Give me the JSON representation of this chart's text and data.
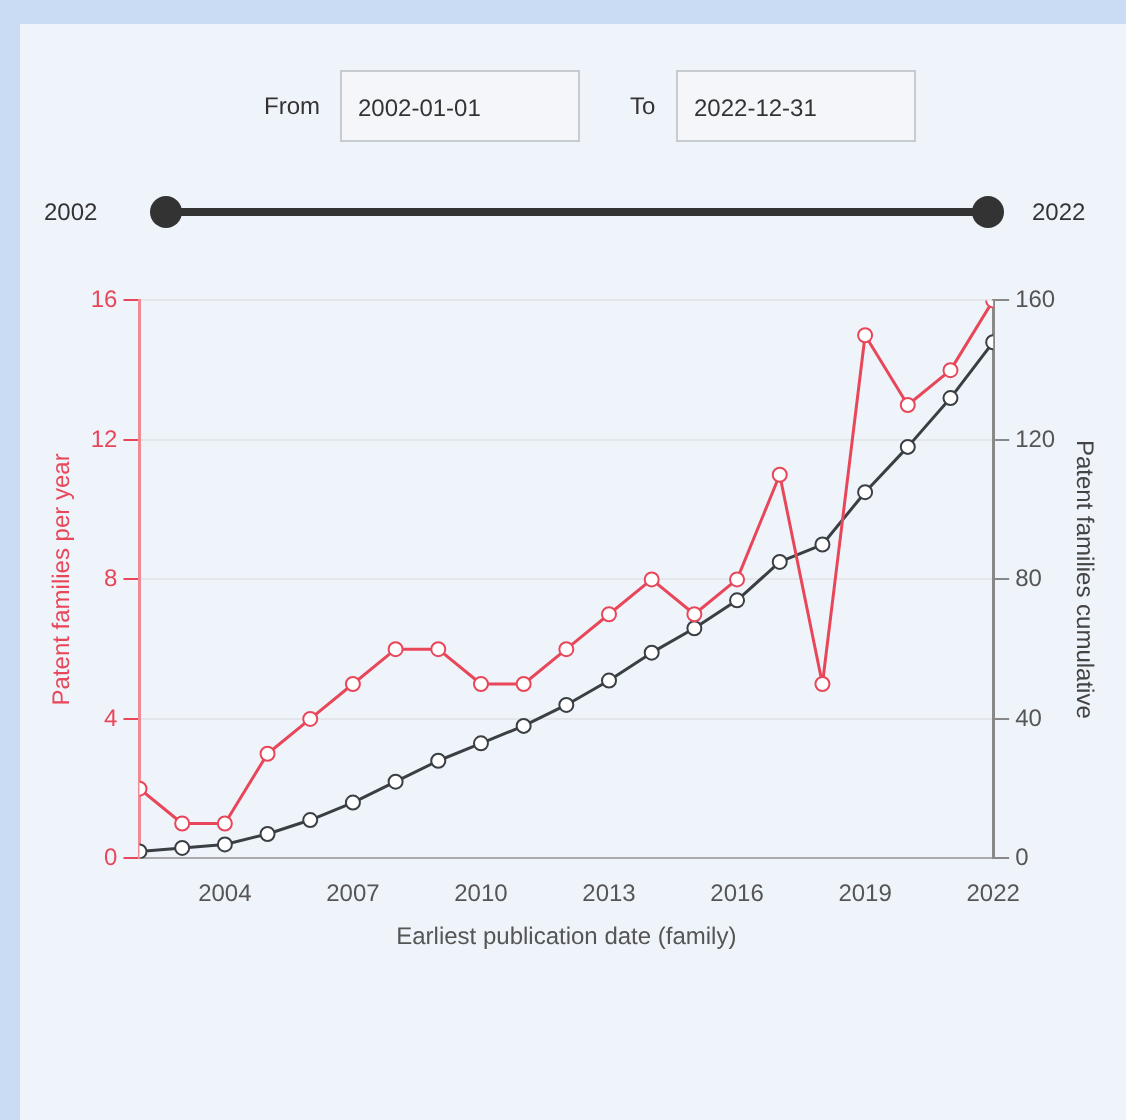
{
  "chart_data": {
    "type": "line",
    "xlabel": "Earliest publication date (family)",
    "ylabel": "Patent families per year",
    "y2label": "Patent families cumulative",
    "annotations": [
      "From",
      "2002-01-01",
      "To",
      "2022-12-31",
      "2002",
      "2022"
    ],
    "x": [
      2002,
      2003,
      2004,
      2005,
      2006,
      2007,
      2008,
      2009,
      2010,
      2011,
      2012,
      2013,
      2014,
      2015,
      2016,
      2017,
      2018,
      2019,
      2020,
      2021,
      2022
    ],
    "series": [
      {
        "color": "#e8475a",
        "values": [
          2,
          1,
          1,
          3,
          4,
          5,
          6,
          6,
          5,
          5,
          6,
          7,
          8,
          7,
          8,
          11,
          5,
          15,
          13,
          14,
          16
        ]
      },
      {
        "color": "#3a3f44",
        "axis": "y2",
        "values": [
          2,
          3,
          4,
          7,
          11,
          16,
          22,
          28,
          33,
          38,
          44,
          51,
          59,
          66,
          74,
          85,
          90,
          105,
          118,
          132,
          148
        ]
      }
    ],
    "xlim": [
      2002,
      2022
    ],
    "xticks": [
      2004,
      2007,
      2010,
      2013,
      2016,
      2019,
      2022
    ],
    "ylim": [
      0,
      16
    ],
    "yticks": [
      0,
      4,
      8,
      12,
      16
    ],
    "y2lim": [
      0,
      160
    ],
    "y2ticks": [
      0,
      40,
      80,
      120,
      160
    ],
    "grid": "y",
    "legend": false,
    "marker": "circle",
    "line_style": "solid"
  }
}
